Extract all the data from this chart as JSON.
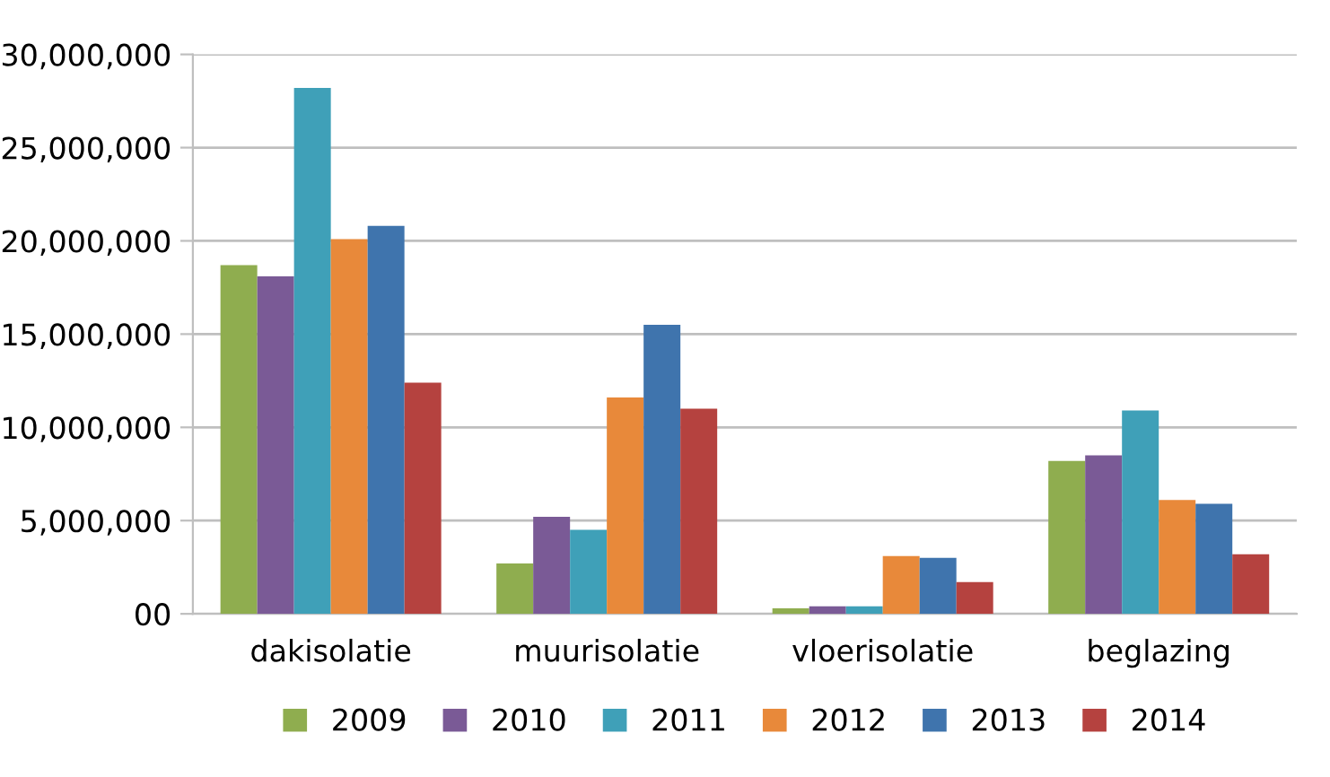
{
  "chart_data": {
    "type": "bar",
    "categories": [
      "dakisolatie",
      "muurisolatie",
      "vloerisolatie",
      "beglazing"
    ],
    "series": [
      {
        "name": "2009",
        "color": "#8fad4f",
        "values": [
          18700000,
          2700000,
          300000,
          8200000
        ]
      },
      {
        "name": "2010",
        "color": "#7a5a96",
        "values": [
          18100000,
          5200000,
          400000,
          8500000
        ]
      },
      {
        "name": "2011",
        "color": "#3fa0b8",
        "values": [
          28200000,
          4500000,
          400000,
          10900000
        ]
      },
      {
        "name": "2012",
        "color": "#e8893a",
        "values": [
          20100000,
          11600000,
          3100000,
          6100000
        ]
      },
      {
        "name": "2013",
        "color": "#3f74ad",
        "values": [
          20800000,
          15500000,
          3000000,
          5900000
        ]
      },
      {
        "name": "2014",
        "color": "#b5423f",
        "values": [
          12400000,
          11000000,
          1700000,
          3200000
        ]
      }
    ],
    "ylim": [
      0,
      30000000
    ],
    "yticks": [
      {
        "value": 0,
        "label": "00"
      },
      {
        "value": 5000000,
        "label": "5,000,000"
      },
      {
        "value": 10000000,
        "label": "10,000,000"
      },
      {
        "value": 15000000,
        "label": "15,000,000"
      },
      {
        "value": 20000000,
        "label": "20,000,000"
      },
      {
        "value": 25000000,
        "label": "25,000,000"
      },
      {
        "value": 30000000,
        "label": "30,000,000"
      }
    ],
    "grid": "y",
    "legend": "bottom"
  }
}
